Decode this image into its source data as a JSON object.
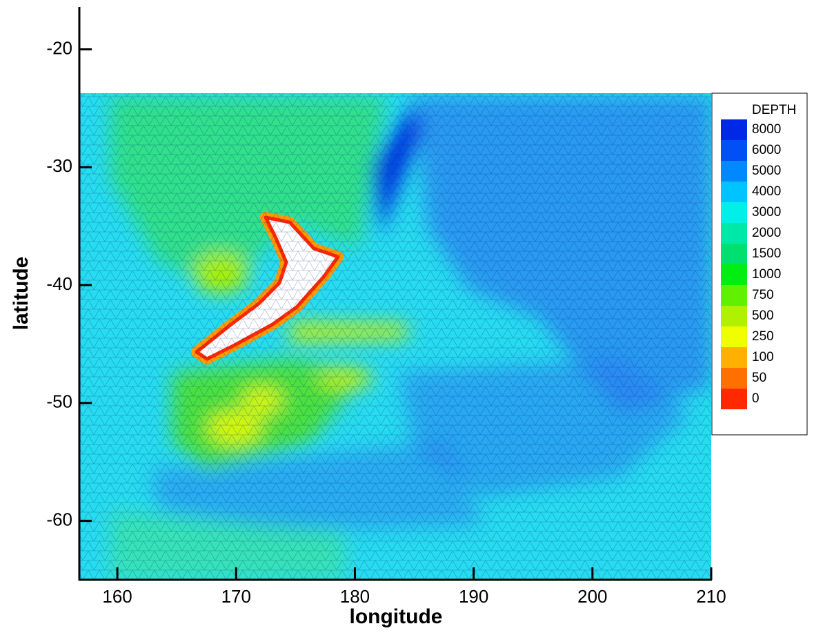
{
  "chart_data": {
    "type": "contour",
    "x_label": "longitude",
    "y_label": "latitude",
    "xlim": [
      156.8,
      210
    ],
    "ylim": [
      -65,
      -16.4
    ],
    "xticks": [
      160,
      170,
      180,
      190,
      200,
      210
    ],
    "yticks": [
      -20,
      -30,
      -40,
      -50,
      -60
    ],
    "legend": {
      "title": "DEPTH",
      "levels": [
        8000,
        6000,
        5000,
        4000,
        3000,
        2000,
        1500,
        1000,
        750,
        500,
        250,
        100,
        50,
        0
      ],
      "colors": [
        "#0028e6",
        "#0050f5",
        "#0088ff",
        "#00c4ff",
        "#00f0e8",
        "#00e8a8",
        "#00e070",
        "#00ee10",
        "#60f000",
        "#b0f000",
        "#f0ff00",
        "#ffb000",
        "#ff7000",
        "#ff2800"
      ]
    }
  }
}
